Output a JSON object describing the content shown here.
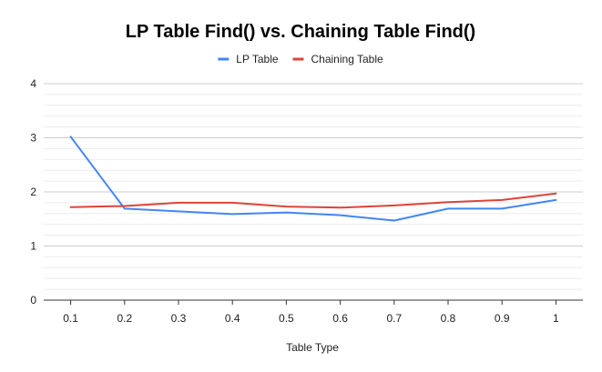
{
  "chart_data": {
    "type": "line",
    "title": "LP Table Find() vs. Chaining Table Find()",
    "xlabel": "Table Type",
    "ylabel": "",
    "categories": [
      "0.1",
      "0.2",
      "0.3",
      "0.4",
      "0.5",
      "0.6",
      "0.7",
      "0.8",
      "0.9",
      "1"
    ],
    "ylim": [
      0,
      4
    ],
    "yticks": [
      "0",
      "1",
      "2",
      "3",
      "4"
    ],
    "grid": true,
    "legend_position": "top",
    "series": [
      {
        "name": "LP Table",
        "color": "#4285f4",
        "values": [
          3.02,
          1.69,
          1.64,
          1.59,
          1.62,
          1.57,
          1.47,
          1.69,
          1.69,
          1.85
        ]
      },
      {
        "name": "Chaining Table",
        "color": "#db4437",
        "values": [
          1.72,
          1.74,
          1.8,
          1.8,
          1.73,
          1.71,
          1.75,
          1.81,
          1.85,
          1.97
        ]
      }
    ]
  }
}
